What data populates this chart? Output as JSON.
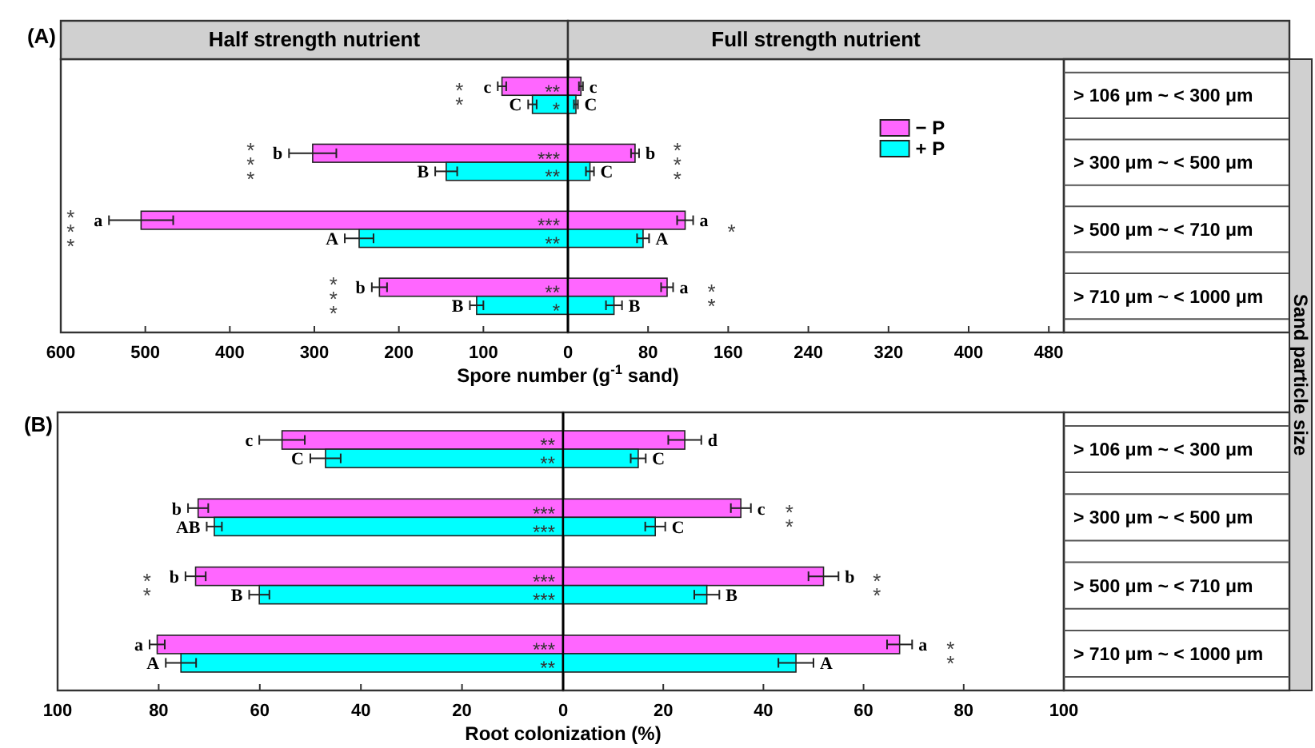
{
  "chart_data": [
    {
      "type": "bar",
      "orientation": "horizontal",
      "title": "(A)",
      "subtitle": "Half strength nutrient",
      "xlabel": "Spore number (g$^{-1}$ sand)",
      "categories": [
        null,
        null,
        null,
        null
      ],
      "tick_labels": "x",
      "xlim": [
        600,
        0
      ],
      "xticks": [
        600,
        500,
        400,
        300,
        200,
        100,
        {
          "value": 0,
          "label": null
        }
      ],
      "series": [
        {
          "color": "#ff66ff",
          "values": [
            78,
            302,
            505,
            223
          ],
          "errors": [
            5,
            28,
            38,
            9
          ],
          "value_labels": [
            "c **",
            "b ***",
            "a ***",
            "b ***"
          ]
        },
        {
          "color": "#00ffff",
          "values": [
            42,
            144,
            247,
            108
          ],
          "errors": [
            5,
            13,
            17,
            8
          ],
          "value_labels": [
            "C",
            "B",
            "A",
            "B"
          ]
        }
      ],
      "annotations": [
        "**",
        "*",
        "***",
        "**",
        "***",
        "**",
        "**",
        "*"
      ]
    },
    {
      "type": "bar",
      "orientation": "horizontal",
      "subtitle": "Full strength nutrient",
      "y2label": "Sand particle size",
      "legend": "right",
      "categories": [
        "> 106 μm ~ < 300 μm",
        "> 300 μm ~ < 500 μm",
        "> 500 μm ~ < 710 μm",
        "> 710 μm ~ < 1000 μm"
      ],
      "xlim": [
        0,
        495
      ],
      "xticks": [
        0,
        80,
        160,
        240,
        320,
        400,
        480
      ],
      "series": [
        {
          "name": "− P",
          "color": "#ff66ff",
          "values": [
            13,
            67,
            117,
            99
          ],
          "errors": [
            2,
            4,
            8,
            6
          ],
          "value_labels": [
            "c",
            "b ***",
            "a *",
            "a **"
          ]
        },
        {
          "name": "+ P",
          "color": "#00ffff",
          "values": [
            8,
            22,
            75,
            46
          ],
          "errors": [
            2,
            4,
            6,
            8
          ],
          "value_labels": [
            "C",
            "C",
            "A",
            "B"
          ]
        }
      ]
    },
    {
      "type": "bar",
      "orientation": "horizontal",
      "title": "(B)",
      "xlabel": "Root colonization (%)",
      "categories": [
        null,
        null,
        null,
        null
      ],
      "tick_labels": "x",
      "xlim": [
        100,
        0
      ],
      "xticks": [
        100,
        80,
        60,
        40,
        20,
        {
          "value": 0,
          "label": null
        }
      ],
      "series": [
        {
          "color": "#ff66ff",
          "values": [
            55.6,
            72.2,
            72.7,
            80.3
          ],
          "errors": [
            4.5,
            2,
            2,
            1.5
          ],
          "value_labels": [
            "c",
            "b",
            "b **",
            "a"
          ]
        },
        {
          "color": "#00ffff",
          "values": [
            47,
            69,
            60.1,
            75.6
          ],
          "errors": [
            3,
            1.5,
            2,
            3
          ],
          "value_labels": [
            "C",
            "AB",
            "B",
            "A"
          ]
        }
      ],
      "annotations": [
        "**",
        "**",
        "***",
        "***",
        "***",
        "***",
        "***",
        "**"
      ]
    },
    {
      "type": "bar",
      "orientation": "horizontal",
      "categories": [
        "> 106 μm ~ < 300 μm",
        "> 300 μm ~ < 500 μm",
        "> 500 μm ~ < 710 μm",
        "> 710 μm ~ < 1000 μm"
      ],
      "xlim": [
        0,
        100
      ],
      "xticks": [
        0,
        20,
        40,
        60,
        80,
        100
      ],
      "series": [
        {
          "color": "#ff66ff",
          "values": [
            24.3,
            35.5,
            52,
            67.2
          ],
          "errors": [
            3.3,
            2,
            3,
            2.5
          ],
          "value_labels": [
            "d",
            "c **",
            "b **",
            "a **"
          ]
        },
        {
          "color": "#00ffff",
          "values": [
            15,
            18.4,
            28.7,
            46.5
          ],
          "errors": [
            1.5,
            2,
            2.5,
            3.5
          ],
          "value_labels": [
            "C",
            "C",
            "B",
            "A"
          ]
        }
      ]
    }
  ]
}
